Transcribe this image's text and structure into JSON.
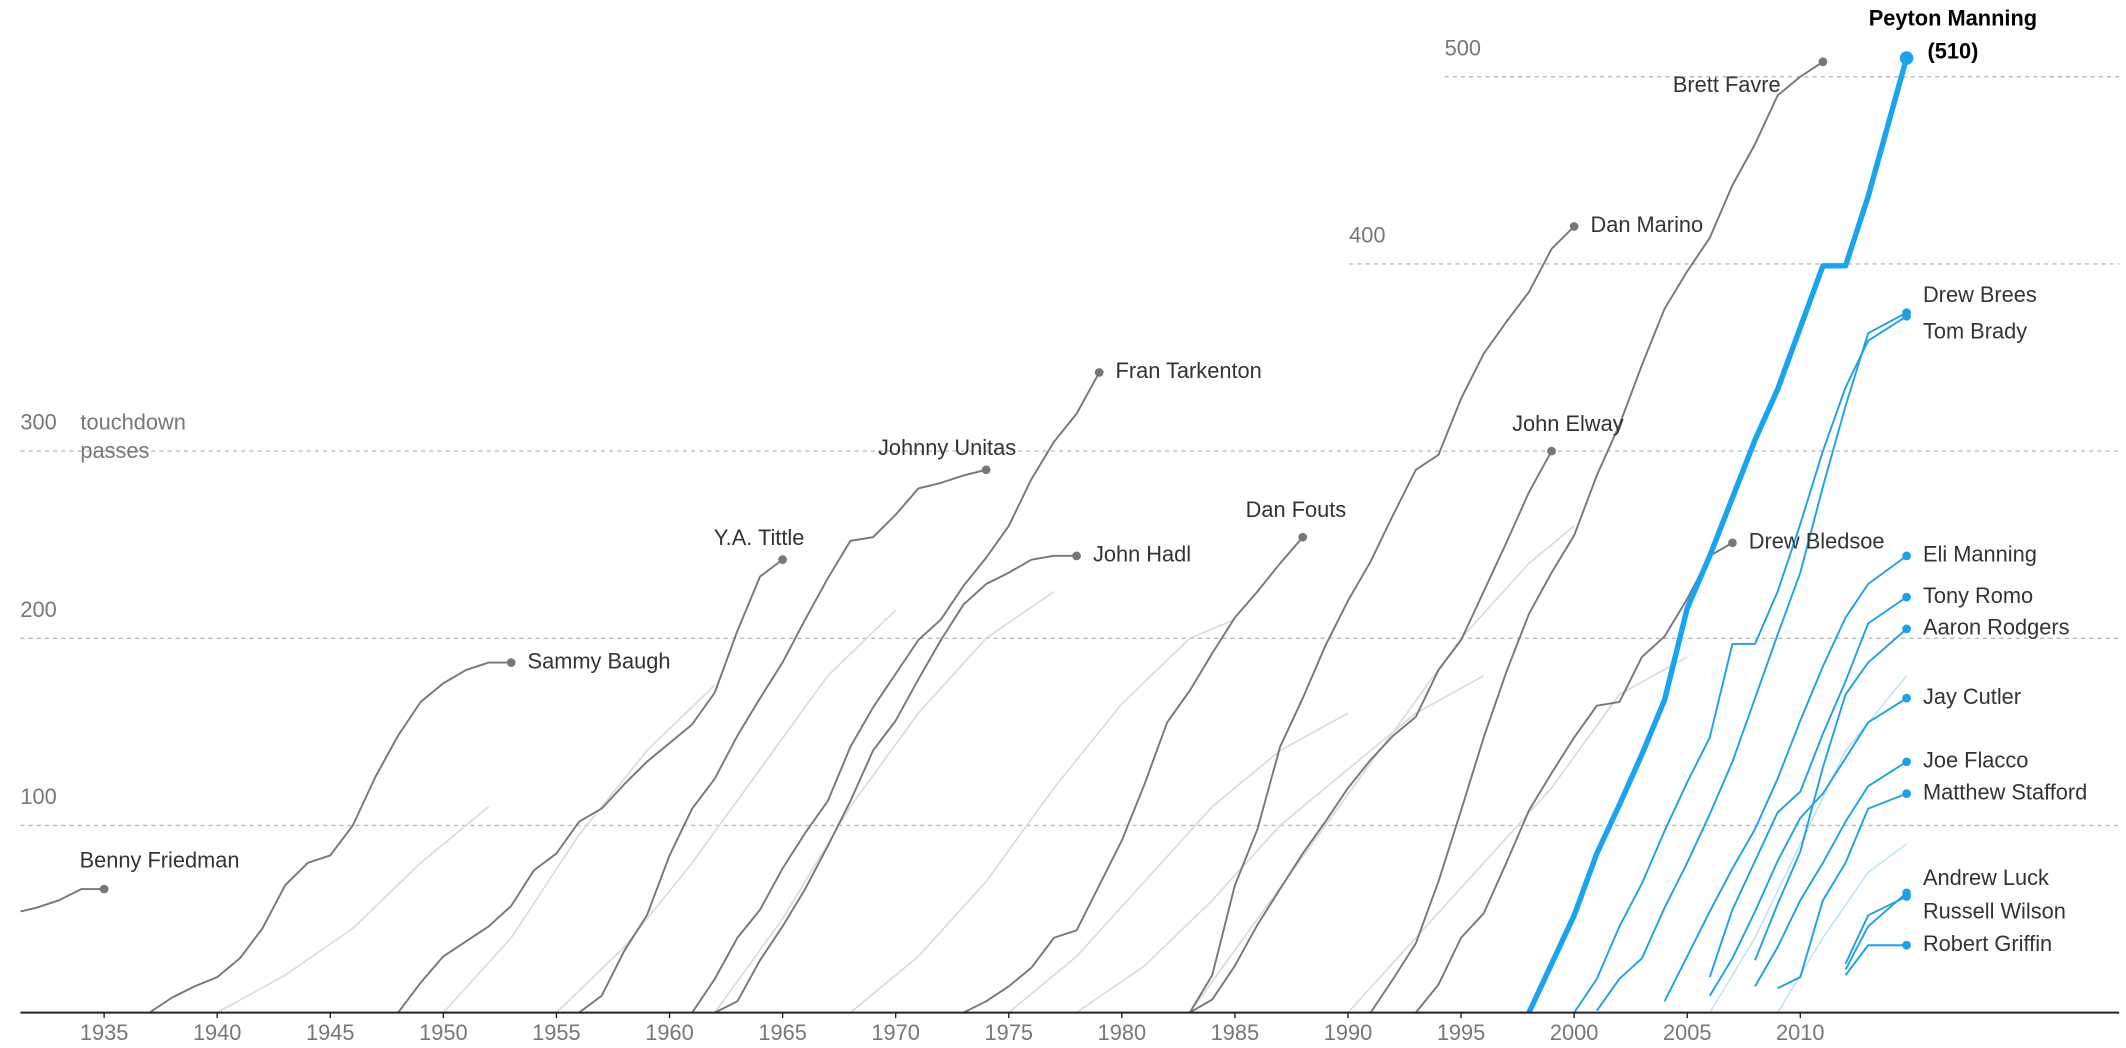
{
  "chart_data": {
    "type": "line",
    "ylabel_lines": [
      "touchdown",
      "passes"
    ],
    "xlim": [
      1931.3,
      2024.1
    ],
    "ylim": [
      0,
      541
    ],
    "xticks": [
      1935,
      1940,
      1945,
      1950,
      1955,
      1960,
      1965,
      1970,
      1975,
      1980,
      1985,
      1990,
      1995,
      2000,
      2005,
      2010
    ],
    "yticks": [
      100,
      200,
      300,
      400,
      500
    ],
    "grid": true,
    "series": [
      {
        "name": "Peyton Manning",
        "color": "#1aa3ef",
        "x": [
          1998,
          1999,
          2000,
          2001,
          2002,
          2003,
          2004,
          2005,
          2006,
          2007,
          2008,
          2009,
          2010,
          2011,
          2012,
          2013,
          2014.7
        ],
        "values": [
          0,
          26,
          52,
          85,
          111,
          138,
          167,
          216,
          244,
          275,
          306,
          333,
          366,
          399,
          399,
          436,
          510
        ],
        "value_labels": [
          null,
          null,
          null,
          null,
          null,
          null,
          null,
          null,
          null,
          null,
          null,
          null,
          null,
          null,
          null,
          null,
          "(510)"
        ]
      },
      {
        "name": "Brett Favre",
        "color": "#777777",
        "x": [
          1991,
          1992,
          1993,
          1994,
          1995,
          1996,
          1997,
          1998,
          1999,
          2000,
          2001,
          2002,
          2003,
          2004,
          2005,
          2006,
          2007,
          2008,
          2009,
          2010,
          2011
        ],
        "values": [
          0,
          18,
          37,
          70,
          108,
          147,
          182,
          213,
          235,
          255,
          287,
          314,
          346,
          376,
          396,
          414,
          442,
          464,
          490,
          500,
          508
        ]
      },
      {
        "name": "Dan Marino",
        "color": "#777777",
        "x": [
          1983,
          1984,
          1985,
          1986,
          1987,
          1988,
          1989,
          1990,
          1991,
          1992,
          1993,
          1994,
          1995,
          1996,
          1997,
          1998,
          1999,
          2000
        ],
        "values": [
          0,
          20,
          68,
          98,
          142,
          168,
          196,
          220,
          241,
          266,
          290,
          298,
          328,
          352,
          369,
          385,
          408,
          420
        ]
      },
      {
        "name": "Fran Tarkenton",
        "color": "#777777",
        "x": [
          1961,
          1962,
          1963,
          1964,
          1965,
          1966,
          1967,
          1968,
          1969,
          1970,
          1971,
          1972,
          1973,
          1974,
          1975,
          1976,
          1977,
          1978,
          1979
        ],
        "values": [
          0,
          18,
          40,
          55,
          77,
          96,
          113,
          142,
          163,
          181,
          199,
          210,
          228,
          243,
          260,
          285,
          305,
          320,
          342
        ]
      },
      {
        "name": "Johnny Unitas",
        "color": "#777777",
        "x": [
          1956,
          1957,
          1958,
          1959,
          1960,
          1961,
          1962,
          1963,
          1964,
          1965,
          1966,
          1967,
          1968,
          1969,
          1970,
          1971,
          1972,
          1973,
          1974
        ],
        "values": [
          0,
          9,
          33,
          52,
          84,
          109,
          125,
          148,
          168,
          187,
          210,
          232,
          252,
          254,
          266,
          280,
          283,
          287,
          290
        ]
      },
      {
        "name": "John Elway",
        "color": "#777777",
        "x": [
          1983,
          1984,
          1985,
          1986,
          1987,
          1988,
          1989,
          1990,
          1991,
          1992,
          1993,
          1994,
          1995,
          1996,
          1997,
          1998,
          1999
        ],
        "values": [
          0,
          7,
          25,
          47,
          66,
          85,
          102,
          120,
          135,
          148,
          158,
          183,
          199,
          225,
          251,
          278,
          300
        ]
      },
      {
        "name": "Dan Fouts",
        "color": "#777777",
        "x": [
          1973,
          1974,
          1975,
          1976,
          1977,
          1978,
          1979,
          1980,
          1981,
          1982,
          1983,
          1984,
          1985,
          1986,
          1987,
          1988
        ],
        "values": [
          0,
          6,
          14,
          24,
          40,
          44,
          68,
          92,
          122,
          155,
          172,
          192,
          211,
          225,
          240,
          254
        ]
      },
      {
        "name": "Drew Bledsoe",
        "color": "#777777",
        "x": [
          1993,
          1994,
          1995,
          1996,
          1997,
          1998,
          1999,
          2000,
          2001,
          2002,
          2003,
          2004,
          2005,
          2006,
          2007
        ],
        "values": [
          0,
          15,
          40,
          53,
          80,
          108,
          128,
          147,
          164,
          166,
          190,
          201,
          221,
          244,
          251
        ]
      },
      {
        "name": "John Hadl",
        "color": "#777777",
        "x": [
          1962,
          1963,
          1964,
          1965,
          1966,
          1967,
          1968,
          1969,
          1970,
          1971,
          1972,
          1973,
          1974,
          1975,
          1976,
          1977,
          1978
        ],
        "values": [
          0,
          6,
          28,
          46,
          66,
          89,
          113,
          140,
          156,
          178,
          199,
          218,
          229,
          235,
          242,
          244,
          244
        ]
      },
      {
        "name": "Y.A. Tittle",
        "color": "#777777",
        "x": [
          1948,
          1949,
          1950,
          1951,
          1952,
          1953,
          1954,
          1955,
          1956,
          1957,
          1958,
          1959,
          1960,
          1961,
          1962,
          1963,
          1964,
          1965
        ],
        "values": [
          0,
          16,
          30,
          38,
          46,
          57,
          76,
          85,
          102,
          109,
          122,
          134,
          144,
          154,
          171,
          204,
          233,
          242
        ]
      },
      {
        "name": "Sammy Baugh",
        "color": "#777777",
        "x": [
          1937,
          1938,
          1939,
          1940,
          1941,
          1942,
          1943,
          1944,
          1945,
          1946,
          1947,
          1948,
          1949,
          1950,
          1951,
          1952,
          1953
        ],
        "values": [
          0,
          8,
          14,
          19,
          29,
          45,
          68,
          80,
          84,
          100,
          126,
          148,
          166,
          176,
          183,
          187,
          187
        ]
      },
      {
        "name": "Benny Friedman",
        "color": "#777777",
        "x": [
          1931.3,
          1932,
          1933,
          1934,
          1935
        ],
        "values": [
          54,
          56,
          60,
          66,
          66
        ]
      },
      {
        "name": "Drew Brees",
        "color": "#1fa0e6",
        "x": [
          2001,
          2002,
          2003,
          2004,
          2005,
          2006,
          2007,
          2008,
          2009,
          2010,
          2011,
          2012,
          2013,
          2014.7
        ],
        "values": [
          1,
          18,
          29,
          56,
          80,
          106,
          134,
          168,
          202,
          235,
          281,
          324,
          363,
          374
        ]
      },
      {
        "name": "Tom Brady",
        "color": "#1fa0e6",
        "x": [
          2000,
          2001,
          2002,
          2003,
          2004,
          2005,
          2006,
          2007,
          2008,
          2009,
          2010,
          2011,
          2012,
          2013,
          2014.7
        ],
        "values": [
          0,
          18,
          46,
          69,
          97,
          123,
          147,
          197,
          197,
          225,
          261,
          300,
          334,
          359,
          372
        ]
      },
      {
        "name": "Eli Manning",
        "color": "#1fa0e6",
        "x": [
          2004,
          2005,
          2006,
          2007,
          2008,
          2009,
          2010,
          2011,
          2012,
          2013,
          2014.7
        ],
        "values": [
          6,
          30,
          54,
          77,
          98,
          125,
          156,
          185,
          211,
          229,
          244
        ]
      },
      {
        "name": "Tony Romo",
        "color": "#1fa0e6",
        "x": [
          2006,
          2007,
          2008,
          2009,
          2010,
          2011,
          2012,
          2013,
          2014.7
        ],
        "values": [
          19,
          55,
          81,
          107,
          118,
          149,
          177,
          208,
          222
        ]
      },
      {
        "name": "Aaron Rodgers",
        "color": "#1fa0e6",
        "x": [
          2008,
          2009,
          2010,
          2011,
          2012,
          2013,
          2014.7
        ],
        "values": [
          28,
          58,
          86,
          131,
          170,
          187,
          205
        ]
      },
      {
        "name": "Jay Cutler",
        "color": "#1fa0e6",
        "x": [
          2006,
          2007,
          2008,
          2009,
          2010,
          2011,
          2012,
          2013,
          2014.7
        ],
        "values": [
          9,
          29,
          54,
          81,
          104,
          117,
          136,
          155,
          168
        ]
      },
      {
        "name": "Joe Flacco",
        "color": "#1fa0e6",
        "x": [
          2008,
          2009,
          2010,
          2011,
          2012,
          2013,
          2014.7
        ],
        "values": [
          14,
          35,
          60,
          80,
          102,
          121,
          134
        ]
      },
      {
        "name": "Matthew Stafford",
        "color": "#1fa0e6",
        "x": [
          2009,
          2010,
          2011,
          2012,
          2013,
          2014.7
        ],
        "values": [
          13,
          19,
          60,
          80,
          109,
          117
        ]
      },
      {
        "name": "Andrew Luck",
        "color": "#1fa0e6",
        "x": [
          2012,
          2013,
          2014.7
        ],
        "values": [
          23,
          46,
          64
        ]
      },
      {
        "name": "Russell Wilson",
        "color": "#1fa0e6",
        "x": [
          2012,
          2013,
          2014.7
        ],
        "values": [
          26,
          52,
          62
        ]
      },
      {
        "name": "Robert Griffin",
        "color": "#1fa0e6",
        "x": [
          2012,
          2013,
          2014.7
        ],
        "values": [
          20,
          36,
          36
        ]
      },
      {
        "color": "#dadada",
        "x": [
          1950,
          1953,
          1956,
          1959,
          1962
        ],
        "values": [
          0,
          40,
          95,
          140,
          175
        ]
      },
      {
        "color": "#dadada",
        "x": [
          1955,
          1958,
          1961,
          1964,
          1967,
          1970
        ],
        "values": [
          0,
          35,
          80,
          130,
          180,
          215
        ]
      },
      {
        "color": "#dadada",
        "x": [
          1962,
          1965,
          1968,
          1971,
          1974,
          1977
        ],
        "values": [
          0,
          50,
          110,
          160,
          200,
          225
        ]
      },
      {
        "color": "#dadada",
        "x": [
          1968,
          1971,
          1974,
          1977,
          1980,
          1983,
          1985
        ],
        "values": [
          0,
          30,
          70,
          120,
          165,
          200,
          210
        ]
      },
      {
        "color": "#dadada",
        "x": [
          1975,
          1978,
          1981,
          1984,
          1987,
          1990
        ],
        "values": [
          0,
          30,
          70,
          110,
          140,
          160
        ]
      },
      {
        "color": "#dadada",
        "x": [
          1983,
          1986,
          1989,
          1992,
          1995,
          1998,
          2000
        ],
        "values": [
          0,
          50,
          100,
          150,
          200,
          240,
          260
        ]
      },
      {
        "color": "#dadada",
        "x": [
          1990,
          1993,
          1996,
          1999,
          2002,
          2005
        ],
        "values": [
          0,
          40,
          80,
          120,
          170,
          190
        ]
      },
      {
        "color": "#dadada",
        "x": [
          1940,
          1943,
          1946,
          1949,
          1952
        ],
        "values": [
          0,
          20,
          45,
          80,
          110
        ]
      },
      {
        "color": "#dadada",
        "x": [
          1978,
          1981,
          1984,
          1987,
          1990,
          1993,
          1996
        ],
        "values": [
          0,
          25,
          60,
          100,
          130,
          160,
          180
        ]
      },
      {
        "color": "#bfe4f8",
        "x": [
          2006,
          2008,
          2010,
          2012,
          2014.7
        ],
        "values": [
          0,
          40,
          90,
          140,
          180
        ]
      },
      {
        "color": "#bfe4f8",
        "x": [
          2009,
          2011,
          2013,
          2014.7
        ],
        "values": [
          0,
          40,
          75,
          90
        ]
      }
    ]
  }
}
